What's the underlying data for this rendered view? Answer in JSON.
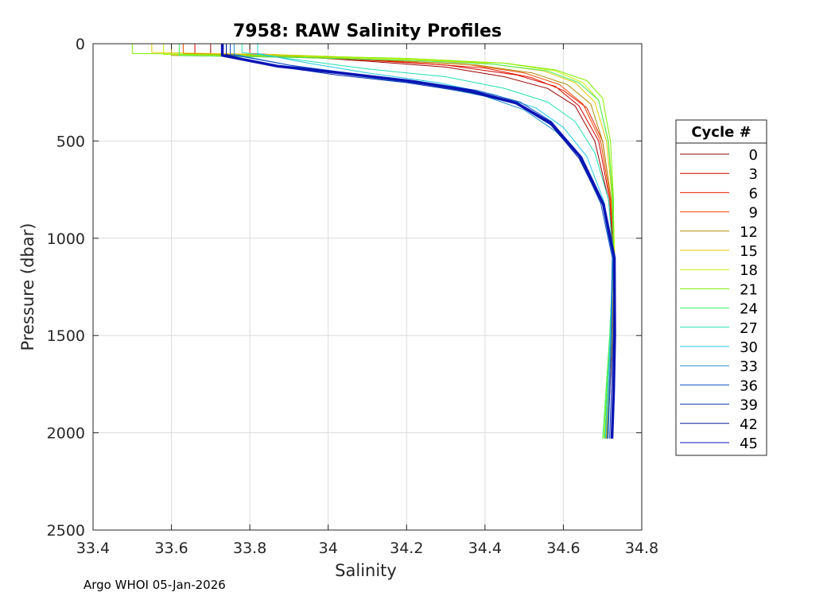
{
  "chart_data": {
    "type": "line",
    "title": "7958: RAW Salinity Profiles",
    "xlabel": "Salinity",
    "ylabel": "Pressure (dbar)",
    "xlim": [
      33.4,
      34.8
    ],
    "ylim": [
      0,
      2500
    ],
    "y_reversed": true,
    "grid": true,
    "x_ticks": [
      33.4,
      33.6,
      33.8,
      34,
      34.2,
      34.4,
      34.6,
      34.8
    ],
    "x_tick_labels": [
      "33.4",
      "33.6",
      "33.8",
      "34",
      "34.2",
      "34.4",
      "34.6",
      "34.8"
    ],
    "y_ticks": [
      0,
      500,
      1000,
      1500,
      2000,
      2500
    ],
    "y_tick_labels": [
      "0",
      "500",
      "1000",
      "1500",
      "2000",
      "2500"
    ],
    "legend": {
      "title": "Cycle #",
      "placement": "right",
      "entries": [
        "0",
        "3",
        "6",
        "9",
        "12",
        "15",
        "18",
        "21",
        "24",
        "27",
        "30",
        "33",
        "36",
        "39",
        "42",
        "45"
      ],
      "colors": [
        "#990000",
        "#d40000",
        "#e61a00",
        "#f04a00",
        "#b08a00",
        "#e6c800",
        "#c8f000",
        "#80f000",
        "#40f060",
        "#20e0b0",
        "#20c8e6",
        "#2090d0",
        "#1050c8",
        "#0830b0",
        "#061a90",
        "#0a14b4"
      ]
    },
    "series": [
      {
        "name": "0",
        "color": "#990000",
        "x": [
          33.7,
          33.7,
          33.95,
          34.1,
          34.3,
          34.45,
          34.56,
          34.63,
          34.68,
          34.715,
          34.73,
          34.725,
          34.718,
          34.712
        ],
        "y": [
          0,
          60,
          70,
          90,
          120,
          170,
          230,
          320,
          500,
          800,
          1100,
          1500,
          1800,
          2030
        ]
      },
      {
        "name": "3",
        "color": "#d40000",
        "x": [
          33.66,
          33.66,
          33.9,
          34.1,
          34.3,
          34.48,
          34.58,
          34.64,
          34.69,
          34.718,
          34.73,
          34.724,
          34.716,
          34.71
        ],
        "y": [
          0,
          55,
          65,
          85,
          110,
          160,
          220,
          320,
          500,
          800,
          1100,
          1500,
          1800,
          2030
        ]
      },
      {
        "name": "6",
        "color": "#e61a00",
        "x": [
          33.8,
          33.8,
          34.0,
          34.2,
          34.4,
          34.52,
          34.6,
          34.66,
          34.7,
          34.722,
          34.73,
          34.726,
          34.718,
          34.712
        ],
        "y": [
          0,
          50,
          70,
          95,
          125,
          175,
          240,
          330,
          500,
          800,
          1100,
          1500,
          1800,
          2030
        ]
      },
      {
        "name": "9",
        "color": "#f04a00",
        "x": [
          33.63,
          33.63,
          33.85,
          34.1,
          34.35,
          34.5,
          34.59,
          34.65,
          34.695,
          34.72,
          34.73,
          34.725,
          34.717,
          34.711
        ],
        "y": [
          0,
          50,
          60,
          80,
          105,
          150,
          210,
          310,
          500,
          800,
          1100,
          1500,
          1800,
          2030
        ]
      },
      {
        "name": "12",
        "color": "#b08a00",
        "x": [
          33.6,
          33.6,
          33.9,
          34.15,
          34.38,
          34.52,
          34.61,
          34.67,
          34.7,
          34.722,
          34.731,
          34.726,
          34.717,
          34.71
        ],
        "y": [
          0,
          60,
          70,
          85,
          110,
          150,
          210,
          310,
          500,
          800,
          1100,
          1500,
          1800,
          2030
        ]
      },
      {
        "name": "15",
        "color": "#e6c800",
        "x": [
          33.55,
          33.55,
          33.85,
          34.15,
          34.4,
          34.55,
          34.63,
          34.68,
          34.71,
          34.725,
          34.731,
          34.725,
          34.715,
          34.708
        ],
        "y": [
          0,
          45,
          55,
          75,
          100,
          140,
          200,
          300,
          500,
          800,
          1100,
          1500,
          1800,
          2030
        ]
      },
      {
        "name": "18",
        "color": "#c8f000",
        "x": [
          33.58,
          33.58,
          33.9,
          34.2,
          34.45,
          34.58,
          34.65,
          34.69,
          34.715,
          34.727,
          34.731,
          34.722,
          34.712,
          34.705
        ],
        "y": [
          0,
          55,
          65,
          80,
          100,
          140,
          200,
          290,
          500,
          800,
          1100,
          1500,
          1800,
          2030
        ]
      },
      {
        "name": "21",
        "color": "#80f000",
        "x": [
          33.5,
          33.5,
          33.85,
          34.2,
          34.45,
          34.58,
          34.66,
          34.7,
          34.72,
          34.728,
          34.728,
          34.72,
          34.71,
          34.703
        ],
        "y": [
          0,
          50,
          60,
          75,
          100,
          135,
          190,
          280,
          500,
          800,
          1100,
          1500,
          1800,
          2030
        ]
      },
      {
        "name": "24",
        "color": "#40f060",
        "x": [
          33.62,
          33.62,
          33.9,
          34.2,
          34.42,
          34.56,
          34.64,
          34.69,
          34.714,
          34.726,
          34.727,
          34.718,
          34.708,
          34.7
        ],
        "y": [
          0,
          60,
          70,
          85,
          105,
          140,
          200,
          290,
          500,
          800,
          1100,
          1500,
          1800,
          2030
        ]
      },
      {
        "name": "27",
        "color": "#20e0b0",
        "x": [
          33.78,
          33.78,
          33.95,
          34.1,
          34.3,
          34.45,
          34.56,
          34.63,
          34.68,
          34.715,
          34.727,
          34.72,
          34.712,
          34.706
        ],
        "y": [
          0,
          45,
          90,
          130,
          170,
          230,
          300,
          400,
          560,
          800,
          1100,
          1500,
          1800,
          2030
        ]
      },
      {
        "name": "30",
        "color": "#20c8e6",
        "x": [
          33.82,
          33.82,
          33.95,
          34.1,
          34.28,
          34.42,
          34.53,
          34.6,
          34.66,
          34.705,
          34.725,
          34.72,
          34.713,
          34.707
        ],
        "y": [
          0,
          50,
          100,
          150,
          200,
          260,
          330,
          430,
          580,
          820,
          1100,
          1500,
          1800,
          2030
        ]
      },
      {
        "name": "33",
        "color": "#2090d0",
        "x": [
          33.76,
          33.76,
          33.9,
          34.05,
          34.25,
          34.4,
          34.5,
          34.58,
          34.65,
          34.7,
          34.725,
          34.722,
          34.716,
          34.712
        ],
        "y": [
          0,
          55,
          110,
          160,
          210,
          270,
          340,
          450,
          600,
          830,
          1100,
          1500,
          1800,
          2030
        ]
      },
      {
        "name": "36",
        "color": "#1050c8",
        "x": [
          33.75,
          33.75,
          33.9,
          34.05,
          34.22,
          34.38,
          34.49,
          34.57,
          34.64,
          34.695,
          34.725,
          34.723,
          34.718,
          34.714
        ],
        "y": [
          0,
          55,
          110,
          150,
          190,
          240,
          300,
          400,
          580,
          820,
          1100,
          1500,
          1800,
          2030
        ]
      },
      {
        "name": "39",
        "color": "#0830b0",
        "x": [
          33.74,
          33.74,
          33.88,
          34.02,
          34.2,
          34.36,
          34.48,
          34.57,
          34.64,
          34.7,
          34.728,
          34.727,
          34.722,
          34.718
        ],
        "y": [
          0,
          60,
          120,
          160,
          200,
          250,
          310,
          420,
          590,
          830,
          1100,
          1500,
          1800,
          2030
        ]
      },
      {
        "name": "42",
        "color": "#061a90",
        "x": [
          33.74,
          33.74,
          33.85,
          34.0,
          34.18,
          34.34,
          34.47,
          34.56,
          34.64,
          34.7,
          34.73,
          34.73,
          34.727,
          34.723
        ],
        "y": [
          0,
          55,
          110,
          145,
          185,
          240,
          300,
          400,
          580,
          820,
          1100,
          1500,
          1800,
          2030
        ]
      },
      {
        "name": "45",
        "color": "#0a14b4",
        "x": [
          33.73,
          33.73,
          33.87,
          34.03,
          34.2,
          34.36,
          34.48,
          34.57,
          34.645,
          34.702,
          34.73,
          34.731,
          34.728,
          34.724
        ],
        "y": [
          0,
          60,
          115,
          150,
          190,
          240,
          305,
          410,
          585,
          825,
          1100,
          1500,
          1800,
          2030
        ]
      }
    ],
    "footer": "Argo WHOI 05-Jan-2026"
  }
}
